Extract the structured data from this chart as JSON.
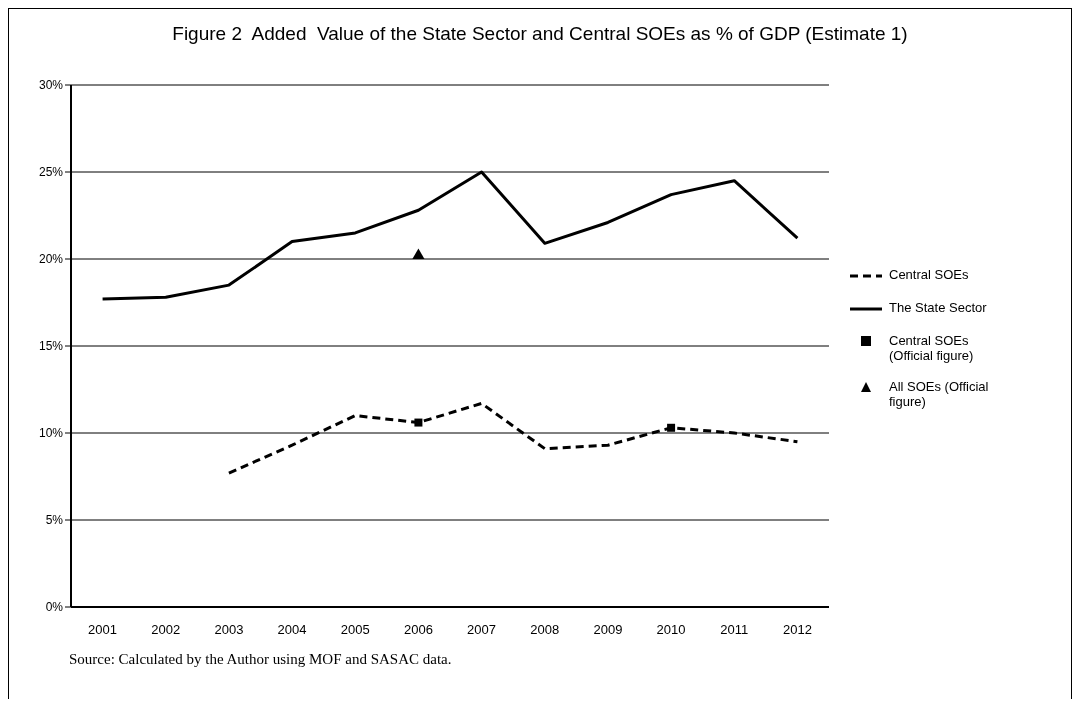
{
  "chart_data": {
    "type": "line",
    "title": "Figure 2  Added  Value of the State Sector and Central SOEs as % of GDP (Estimate 1)",
    "categories": [
      "2001",
      "2002",
      "2003",
      "2004",
      "2005",
      "2006",
      "2007",
      "2008",
      "2009",
      "2010",
      "2011",
      "2012"
    ],
    "series": [
      {
        "name": "Central SOEs",
        "color": "#000000",
        "line_style": "dashed",
        "marker": "none",
        "values": [
          null,
          null,
          7.7,
          9.3,
          11.0,
          10.6,
          11.7,
          9.1,
          9.3,
          10.3,
          10.0,
          9.5
        ]
      },
      {
        "name": "The State Sector",
        "color": "#000000",
        "line_style": "solid",
        "marker": "none",
        "values": [
          17.7,
          17.8,
          18.5,
          21.0,
          21.5,
          22.8,
          25.0,
          20.9,
          22.1,
          23.7,
          24.5,
          21.2
        ]
      },
      {
        "name": "Central SOEs (Official figure)",
        "type": "scatter",
        "color": "#000000",
        "marker": "square",
        "values": [
          null,
          null,
          null,
          null,
          null,
          10.6,
          null,
          null,
          null,
          10.3,
          null,
          null
        ]
      },
      {
        "name": "All SOEs (Official figure)",
        "type": "scatter",
        "color": "#000000",
        "marker": "triangle",
        "values": [
          null,
          null,
          null,
          null,
          null,
          20.2,
          null,
          null,
          null,
          null,
          null,
          null
        ]
      }
    ],
    "ylim": [
      0,
      30
    ],
    "yticks": [
      {
        "value": 0,
        "label": "0%"
      },
      {
        "value": 5,
        "label": "5%"
      },
      {
        "value": 10,
        "label": "10%"
      },
      {
        "value": 15,
        "label": "15%"
      },
      {
        "value": 20,
        "label": "20%"
      },
      {
        "value": 25,
        "label": "25%"
      },
      {
        "value": 30,
        "label": "30%"
      }
    ],
    "grid": "y",
    "legend": "right",
    "annotations": [
      "Source: Calculated by the Author using MOF and SASAC data."
    ]
  }
}
